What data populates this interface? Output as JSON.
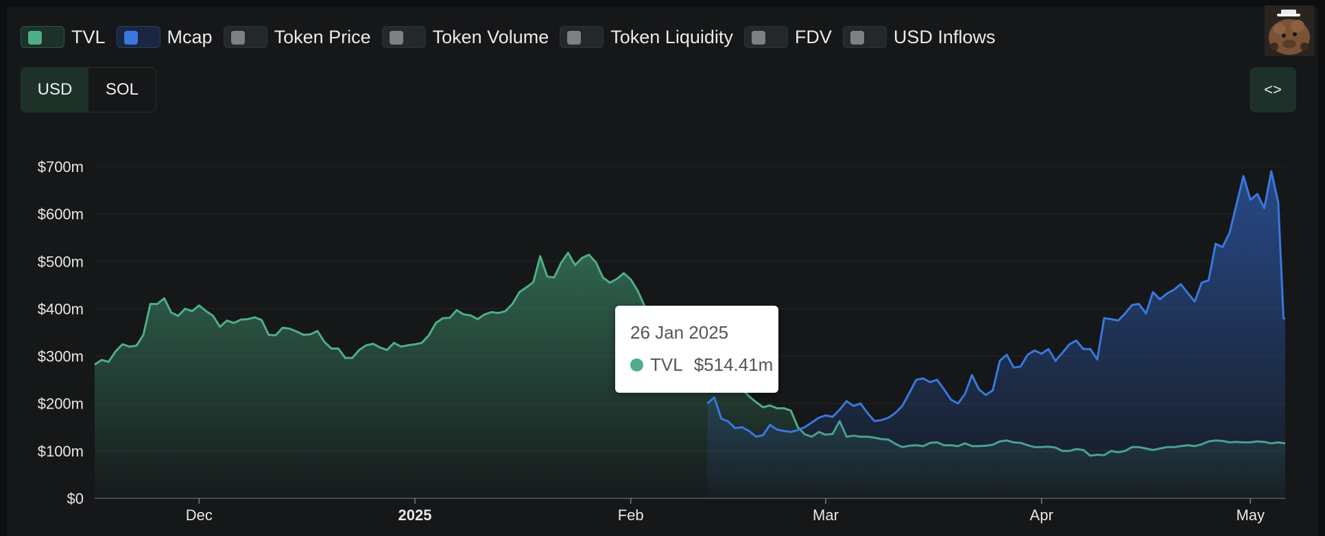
{
  "legend": {
    "items": [
      {
        "label": "TVL",
        "active": true,
        "color": "#4fae88"
      },
      {
        "label": "Mcap",
        "active": true,
        "color": "#3a78e0"
      },
      {
        "label": "Token Price",
        "active": false
      },
      {
        "label": "Token Volume",
        "active": false
      },
      {
        "label": "Token Liquidity",
        "active": false
      },
      {
        "label": "FDV",
        "active": false
      },
      {
        "label": "USD Inflows",
        "active": false
      }
    ]
  },
  "currency": {
    "options": [
      "USD",
      "SOL"
    ],
    "selected": "USD"
  },
  "embed": {
    "label": "<>"
  },
  "tooltip": {
    "date": "26 Jan 2025",
    "series": "TVL",
    "value": "$514.41m"
  },
  "chart_data": {
    "type": "area",
    "y_ticks": [
      "$0",
      "$100m",
      "$200m",
      "$300m",
      "$400m",
      "$500m",
      "$600m",
      "$700m"
    ],
    "ylim": [
      0,
      700
    ],
    "x_ticks": [
      {
        "label": "Dec",
        "date": "2024-12-01",
        "bold": false
      },
      {
        "label": "2025",
        "date": "2025-01-01",
        "bold": true
      },
      {
        "label": "Feb",
        "date": "2025-02-01",
        "bold": false
      },
      {
        "label": "Mar",
        "date": "2025-03-01",
        "bold": false
      },
      {
        "label": "Apr",
        "date": "2025-04-01",
        "bold": false
      },
      {
        "label": "May",
        "date": "2025-05-01",
        "bold": false
      }
    ],
    "xlim": [
      "2024-11-16",
      "2025-05-06"
    ],
    "grid": true,
    "series": [
      {
        "name": "TVL",
        "color": "#4fae88",
        "points": [
          [
            "2024-11-16",
            282
          ],
          [
            "2024-11-17",
            292
          ],
          [
            "2024-11-18",
            288
          ],
          [
            "2024-11-19",
            310
          ],
          [
            "2024-11-20",
            325
          ],
          [
            "2024-11-21",
            320
          ],
          [
            "2024-11-22",
            322
          ],
          [
            "2024-11-23",
            345
          ],
          [
            "2024-11-24",
            410
          ],
          [
            "2024-11-25",
            410
          ],
          [
            "2024-11-26",
            422
          ],
          [
            "2024-11-27",
            392
          ],
          [
            "2024-11-28",
            385
          ],
          [
            "2024-11-29",
            400
          ],
          [
            "2024-11-30",
            395
          ],
          [
            "2024-12-01",
            407
          ],
          [
            "2024-12-02",
            395
          ],
          [
            "2024-12-03",
            385
          ],
          [
            "2024-12-04",
            362
          ],
          [
            "2024-12-05",
            375
          ],
          [
            "2024-12-06",
            370
          ],
          [
            "2024-12-07",
            377
          ],
          [
            "2024-12-08",
            378
          ],
          [
            "2024-12-09",
            382
          ],
          [
            "2024-12-10",
            376
          ],
          [
            "2024-12-11",
            345
          ],
          [
            "2024-12-12",
            344
          ],
          [
            "2024-12-13",
            360
          ],
          [
            "2024-12-14",
            358
          ],
          [
            "2024-12-15",
            352
          ],
          [
            "2024-12-16",
            345
          ],
          [
            "2024-12-17",
            346
          ],
          [
            "2024-12-18",
            353
          ],
          [
            "2024-12-19",
            330
          ],
          [
            "2024-12-20",
            316
          ],
          [
            "2024-12-21",
            316
          ],
          [
            "2024-12-22",
            296
          ],
          [
            "2024-12-23",
            296
          ],
          [
            "2024-12-24",
            313
          ],
          [
            "2024-12-25",
            323
          ],
          [
            "2024-12-26",
            326
          ],
          [
            "2024-12-27",
            318
          ],
          [
            "2024-12-28",
            313
          ],
          [
            "2024-12-29",
            328
          ],
          [
            "2024-12-30",
            320
          ],
          [
            "2024-12-31",
            323
          ],
          [
            "2025-01-01",
            325
          ],
          [
            "2025-01-02",
            328
          ],
          [
            "2025-01-03",
            344
          ],
          [
            "2025-01-04",
            370
          ],
          [
            "2025-01-05",
            380
          ],
          [
            "2025-01-06",
            381
          ],
          [
            "2025-01-07",
            397
          ],
          [
            "2025-01-08",
            388
          ],
          [
            "2025-01-09",
            386
          ],
          [
            "2025-01-10",
            378
          ],
          [
            "2025-01-11",
            388
          ],
          [
            "2025-01-12",
            393
          ],
          [
            "2025-01-13",
            391
          ],
          [
            "2025-01-14",
            395
          ],
          [
            "2025-01-15",
            410
          ],
          [
            "2025-01-16",
            435
          ],
          [
            "2025-01-17",
            445
          ],
          [
            "2025-01-18",
            456
          ],
          [
            "2025-01-19",
            511
          ],
          [
            "2025-01-20",
            468
          ],
          [
            "2025-01-21",
            466
          ],
          [
            "2025-01-22",
            497
          ],
          [
            "2025-01-23",
            518
          ],
          [
            "2025-01-24",
            492
          ],
          [
            "2025-01-25",
            507
          ],
          [
            "2025-01-26",
            514
          ],
          [
            "2025-01-27",
            498
          ],
          [
            "2025-01-28",
            466
          ],
          [
            "2025-01-29",
            455
          ],
          [
            "2025-01-30",
            463
          ],
          [
            "2025-01-31",
            475
          ],
          [
            "2025-02-01",
            462
          ],
          [
            "2025-02-02",
            438
          ],
          [
            "2025-02-03",
            405
          ],
          [
            "2025-02-04",
            372
          ],
          [
            "2025-02-05",
            342
          ],
          [
            "2025-02-06",
            318
          ],
          [
            "2025-02-07",
            300
          ],
          [
            "2025-02-08",
            290
          ],
          [
            "2025-02-09",
            288
          ],
          [
            "2025-02-10",
            280
          ],
          [
            "2025-02-11",
            282
          ],
          [
            "2025-02-12",
            278
          ],
          [
            "2025-02-13",
            275
          ],
          [
            "2025-02-14",
            270
          ],
          [
            "2025-02-15",
            260
          ],
          [
            "2025-02-16",
            245
          ],
          [
            "2025-02-17",
            230
          ],
          [
            "2025-02-18",
            215
          ],
          [
            "2025-02-19",
            203
          ],
          [
            "2025-02-20",
            192
          ],
          [
            "2025-02-21",
            196
          ],
          [
            "2025-02-22",
            190
          ],
          [
            "2025-02-23",
            190
          ],
          [
            "2025-02-24",
            185
          ],
          [
            "2025-02-25",
            150
          ],
          [
            "2025-02-26",
            135
          ],
          [
            "2025-02-27",
            130
          ],
          [
            "2025-02-28",
            140
          ],
          [
            "2025-03-01",
            134
          ],
          [
            "2025-03-02",
            136
          ],
          [
            "2025-03-03",
            163
          ],
          [
            "2025-03-04",
            130
          ],
          [
            "2025-03-05",
            132
          ],
          [
            "2025-03-06",
            130
          ],
          [
            "2025-03-07",
            130
          ],
          [
            "2025-03-08",
            128
          ],
          [
            "2025-03-09",
            125
          ],
          [
            "2025-03-10",
            124
          ],
          [
            "2025-03-11",
            115
          ],
          [
            "2025-03-12",
            108
          ],
          [
            "2025-03-13",
            111
          ],
          [
            "2025-03-14",
            112
          ],
          [
            "2025-03-15",
            110
          ],
          [
            "2025-03-16",
            117
          ],
          [
            "2025-03-17",
            118
          ],
          [
            "2025-03-18",
            112
          ],
          [
            "2025-03-19",
            112
          ],
          [
            "2025-03-20",
            110
          ],
          [
            "2025-03-21",
            116
          ],
          [
            "2025-03-22",
            110
          ],
          [
            "2025-03-23",
            110
          ],
          [
            "2025-03-24",
            111
          ],
          [
            "2025-03-25",
            113
          ],
          [
            "2025-03-26",
            120
          ],
          [
            "2025-03-27",
            122
          ],
          [
            "2025-03-28",
            118
          ],
          [
            "2025-03-29",
            117
          ],
          [
            "2025-03-30",
            112
          ],
          [
            "2025-03-31",
            108
          ],
          [
            "2025-04-01",
            108
          ],
          [
            "2025-04-02",
            109
          ],
          [
            "2025-04-03",
            107
          ],
          [
            "2025-04-04",
            100
          ],
          [
            "2025-04-05",
            100
          ],
          [
            "2025-04-06",
            104
          ],
          [
            "2025-04-07",
            102
          ],
          [
            "2025-04-08",
            90
          ],
          [
            "2025-04-09",
            92
          ],
          [
            "2025-04-10",
            91
          ],
          [
            "2025-04-11",
            100
          ],
          [
            "2025-04-12",
            97
          ],
          [
            "2025-04-13",
            100
          ],
          [
            "2025-04-14",
            108
          ],
          [
            "2025-04-15",
            108
          ],
          [
            "2025-04-16",
            105
          ],
          [
            "2025-04-17",
            102
          ],
          [
            "2025-04-18",
            105
          ],
          [
            "2025-04-19",
            108
          ],
          [
            "2025-04-20",
            108
          ],
          [
            "2025-04-21",
            110
          ],
          [
            "2025-04-22",
            112
          ],
          [
            "2025-04-23",
            110
          ],
          [
            "2025-04-24",
            114
          ],
          [
            "2025-04-25",
            120
          ],
          [
            "2025-04-26",
            122
          ],
          [
            "2025-04-27",
            121
          ],
          [
            "2025-04-28",
            118
          ],
          [
            "2025-04-29",
            119
          ],
          [
            "2025-04-30",
            118
          ],
          [
            "2025-05-01",
            118
          ],
          [
            "2025-05-02",
            120
          ],
          [
            "2025-05-03",
            119
          ],
          [
            "2025-05-04",
            116
          ],
          [
            "2025-05-05",
            118
          ],
          [
            "2025-05-06",
            116
          ]
        ]
      },
      {
        "name": "Mcap",
        "color": "#3a78e0",
        "points": [
          [
            "2025-02-12",
            200
          ],
          [
            "2025-02-13",
            213
          ],
          [
            "2025-02-14",
            168
          ],
          [
            "2025-02-15",
            162
          ],
          [
            "2025-02-16",
            148
          ],
          [
            "2025-02-17",
            150
          ],
          [
            "2025-02-18",
            142
          ],
          [
            "2025-02-19",
            130
          ],
          [
            "2025-02-20",
            133
          ],
          [
            "2025-02-21",
            155
          ],
          [
            "2025-02-22",
            145
          ],
          [
            "2025-02-23",
            142
          ],
          [
            "2025-02-24",
            140
          ],
          [
            "2025-02-25",
            144
          ],
          [
            "2025-02-26",
            150
          ],
          [
            "2025-02-27",
            160
          ],
          [
            "2025-02-28",
            170
          ],
          [
            "2025-03-01",
            175
          ],
          [
            "2025-03-02",
            172
          ],
          [
            "2025-03-03",
            187
          ],
          [
            "2025-03-04",
            205
          ],
          [
            "2025-03-05",
            195
          ],
          [
            "2025-03-06",
            200
          ],
          [
            "2025-03-07",
            180
          ],
          [
            "2025-03-08",
            163
          ],
          [
            "2025-03-09",
            165
          ],
          [
            "2025-03-10",
            170
          ],
          [
            "2025-03-11",
            180
          ],
          [
            "2025-03-12",
            195
          ],
          [
            "2025-03-13",
            222
          ],
          [
            "2025-03-14",
            250
          ],
          [
            "2025-03-15",
            253
          ],
          [
            "2025-03-16",
            245
          ],
          [
            "2025-03-17",
            250
          ],
          [
            "2025-03-18",
            230
          ],
          [
            "2025-03-19",
            208
          ],
          [
            "2025-03-20",
            200
          ],
          [
            "2025-03-21",
            220
          ],
          [
            "2025-03-22",
            260
          ],
          [
            "2025-03-23",
            230
          ],
          [
            "2025-03-24",
            218
          ],
          [
            "2025-03-25",
            228
          ],
          [
            "2025-03-26",
            290
          ],
          [
            "2025-03-27",
            303
          ],
          [
            "2025-03-28",
            276
          ],
          [
            "2025-03-29",
            278
          ],
          [
            "2025-03-30",
            303
          ],
          [
            "2025-03-31",
            312
          ],
          [
            "2025-04-01",
            305
          ],
          [
            "2025-04-02",
            315
          ],
          [
            "2025-04-03",
            290
          ],
          [
            "2025-04-04",
            307
          ],
          [
            "2025-04-05",
            325
          ],
          [
            "2025-04-06",
            333
          ],
          [
            "2025-04-07",
            315
          ],
          [
            "2025-04-08",
            315
          ],
          [
            "2025-04-09",
            293
          ],
          [
            "2025-04-10",
            380
          ],
          [
            "2025-04-11",
            378
          ],
          [
            "2025-04-12",
            375
          ],
          [
            "2025-04-13",
            390
          ],
          [
            "2025-04-14",
            408
          ],
          [
            "2025-04-15",
            410
          ],
          [
            "2025-04-16",
            390
          ],
          [
            "2025-04-17",
            435
          ],
          [
            "2025-04-18",
            420
          ],
          [
            "2025-04-19",
            432
          ],
          [
            "2025-04-20",
            440
          ],
          [
            "2025-04-21",
            452
          ],
          [
            "2025-04-22",
            433
          ],
          [
            "2025-04-23",
            415
          ],
          [
            "2025-04-24",
            455
          ],
          [
            "2025-04-25",
            460
          ],
          [
            "2025-04-26",
            537
          ],
          [
            "2025-04-27",
            530
          ],
          [
            "2025-04-28",
            560
          ],
          [
            "2025-04-29",
            620
          ],
          [
            "2025-04-30",
            680
          ],
          [
            "2025-05-01",
            630
          ],
          [
            "2025-05-02",
            642
          ],
          [
            "2025-05-03",
            612
          ],
          [
            "2025-05-04",
            690
          ],
          [
            "2025-05-05",
            625
          ],
          [
            "2025-05-05T18",
            380
          ],
          [
            "2025-05-06",
            378
          ]
        ]
      }
    ]
  }
}
